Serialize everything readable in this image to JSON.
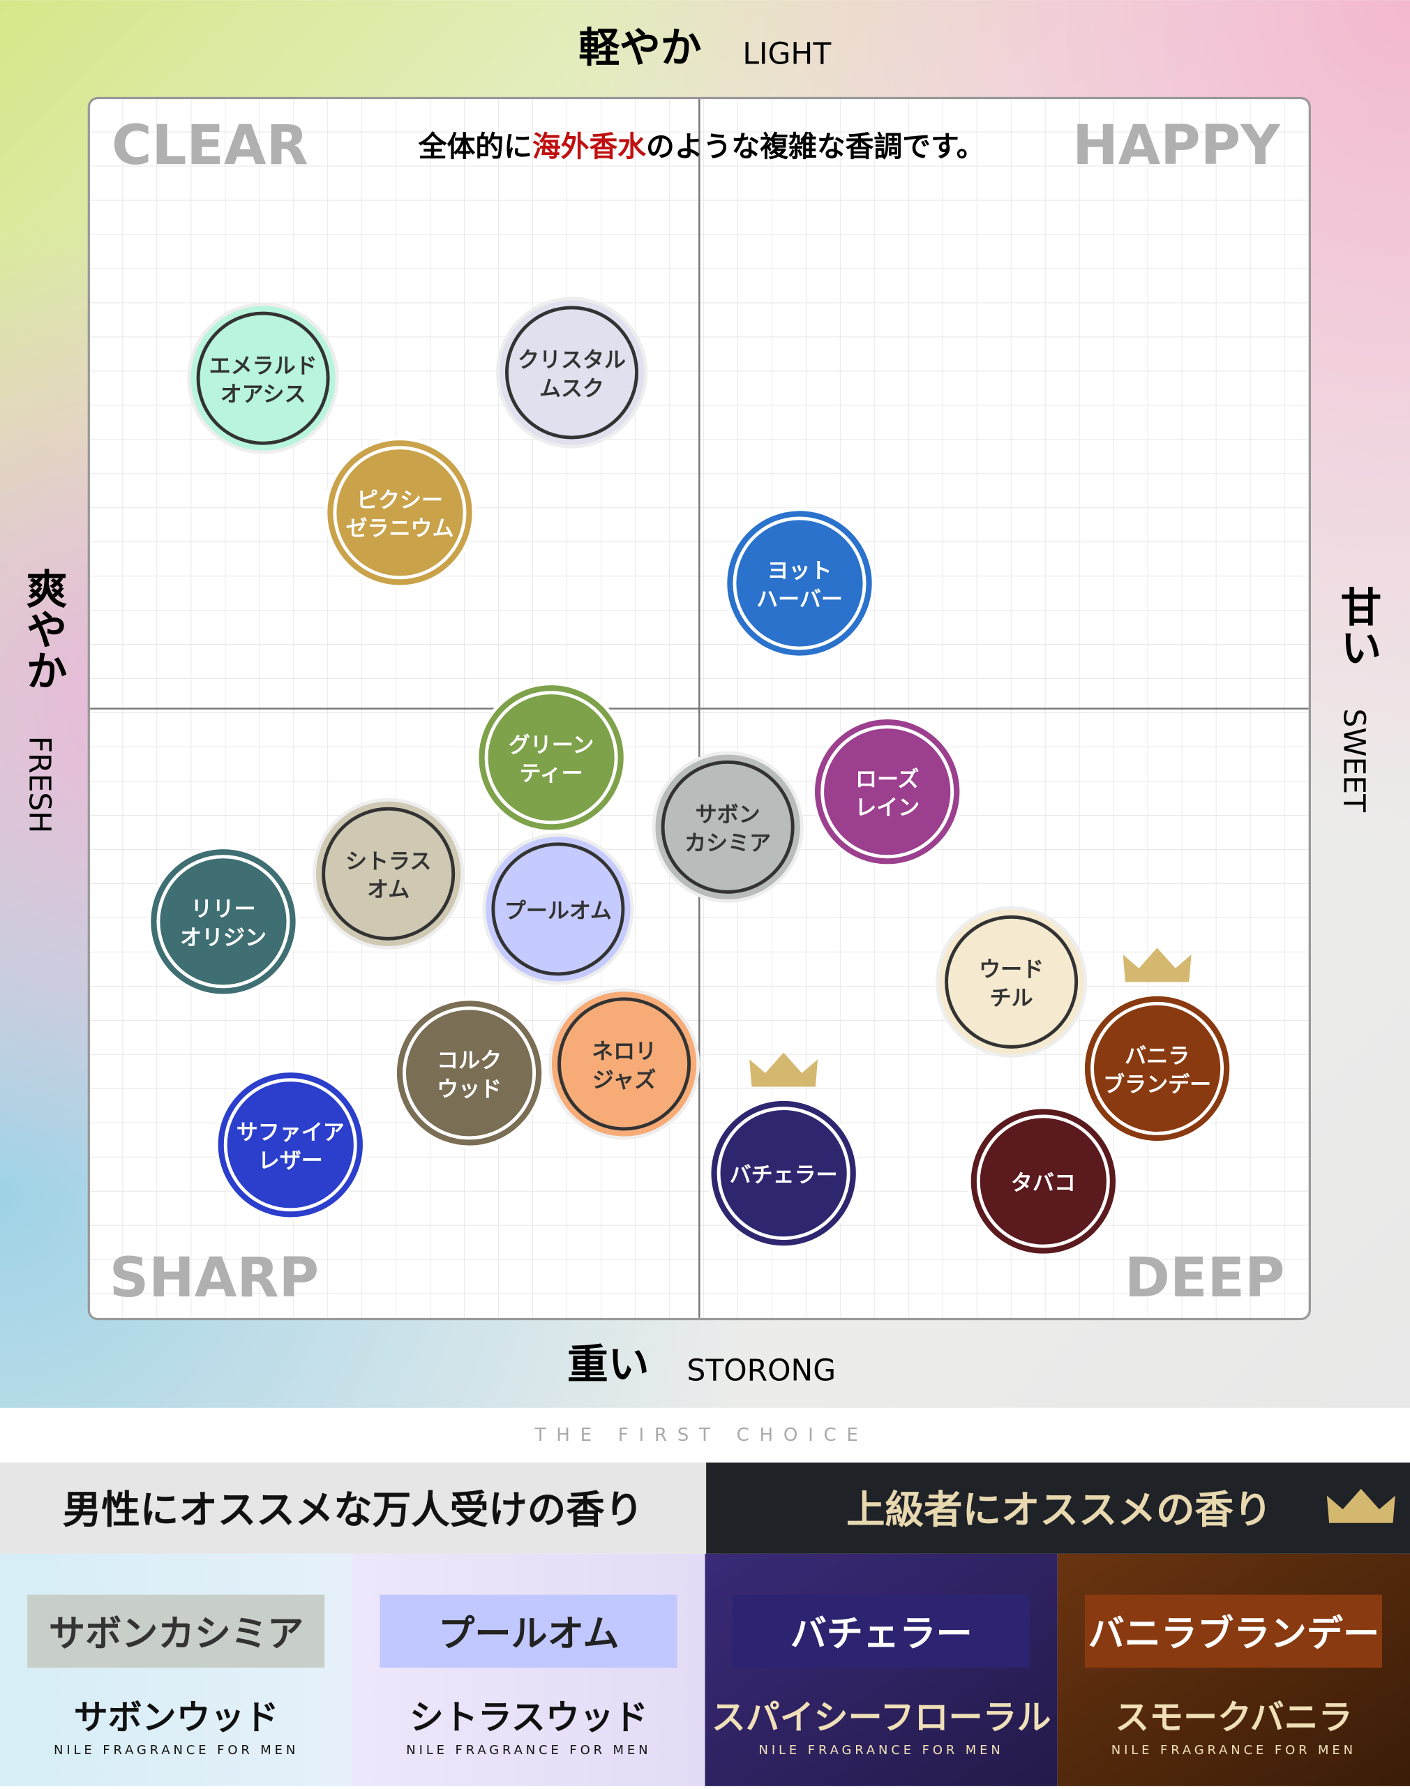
{
  "axes": {
    "top": {
      "jp": "軽やか",
      "en": "LIGHT"
    },
    "bottom": {
      "jp": "重い",
      "en": "STORONG"
    },
    "left": {
      "jp": "爽やか",
      "en": "FRESH"
    },
    "right": {
      "jp": "甘い",
      "en": "SWEET"
    }
  },
  "quadrants": [
    "CLEAR",
    "HAPPY",
    "SHARP",
    "DEEP"
  ],
  "headline": [
    "全体的に",
    "海外香水",
    "のような複雑な香調です。"
  ],
  "nodes": [
    {
      "lines": [
        "エメラルド",
        "オアシス"
      ]
    },
    {
      "lines": [
        "クリスタル",
        "ムスク"
      ]
    },
    {
      "lines": [
        "ピクシー",
        "ゼラニウム"
      ]
    },
    {
      "lines": [
        "ヨット",
        "ハーバー"
      ]
    },
    {
      "lines": [
        "グリーン",
        "ティー"
      ]
    },
    {
      "lines": [
        "サボン",
        "カシミア"
      ]
    },
    {
      "lines": [
        "ローズ",
        "レイン"
      ]
    },
    {
      "lines": [
        "シトラス",
        "オム"
      ]
    },
    {
      "lines": [
        "リリー",
        "オリジン"
      ]
    },
    {
      "lines": [
        "プールオム"
      ]
    },
    {
      "lines": [
        "ウード",
        "チル"
      ]
    },
    {
      "lines": [
        "バニラ",
        "ブランデー"
      ]
    },
    {
      "lines": [
        "コルク",
        "ウッド"
      ]
    },
    {
      "lines": [
        "ネロリ",
        "ジャズ"
      ]
    },
    {
      "lines": [
        "サファイア",
        "レザー"
      ]
    },
    {
      "lines": [
        "バチェラー"
      ]
    },
    {
      "lines": [
        "タバコ"
      ]
    }
  ],
  "tagline": "THE FIRST CHOICE",
  "sections": [
    "男性にオススメな万人受けの香り",
    "上級者にオススメの香り"
  ],
  "products": [
    {
      "name": "サボンカシミア",
      "scent": "サボンウッド",
      "brand": "NILE FRAGRANCE FOR MEN"
    },
    {
      "name": "プールオム",
      "scent": "シトラスウッド",
      "brand": "NILE FRAGRANCE FOR MEN"
    },
    {
      "name": "バチェラー",
      "scent": "スパイシーフローラル",
      "brand": "NILE FRAGRANCE FOR MEN"
    },
    {
      "name": "バニラブランデー",
      "scent": "スモークバニラ",
      "brand": "NILE FRAGRANCE FOR MEN"
    }
  ]
}
